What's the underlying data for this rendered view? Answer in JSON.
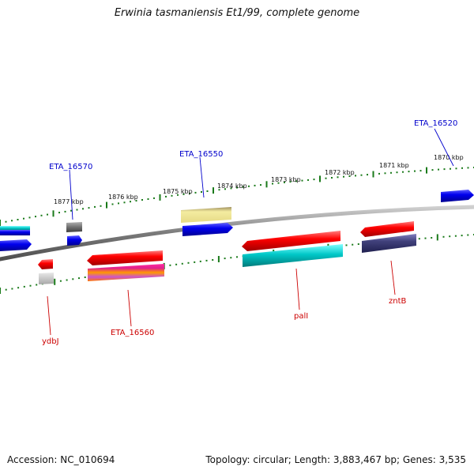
{
  "title": "Erwinia tasmaniensis Et1/99, complete genome",
  "footer": {
    "accession": "Accession: NC_010694",
    "summary": "Topology: circular; Length: 3,883,467 bp; Genes: 3,535"
  },
  "scale_labels": [
    "1877 kbp",
    "1876 kbp",
    "1875 kbp",
    "1874 kbp",
    "1873 kbp",
    "1872 kbp",
    "1871 kbp",
    "1870 kbp"
  ],
  "gene_labels": {
    "forward": [
      "ETA_16570",
      "ETA_16550",
      "ETA_16520"
    ],
    "reverse": [
      "ydbJ",
      "ETA_16560",
      "palI",
      "zntB"
    ]
  },
  "colors": {
    "forward_label": "#0000cc",
    "reverse_label": "#cc0000",
    "tick": "#1a7a1a",
    "backbone": "#7a7a7a"
  }
}
